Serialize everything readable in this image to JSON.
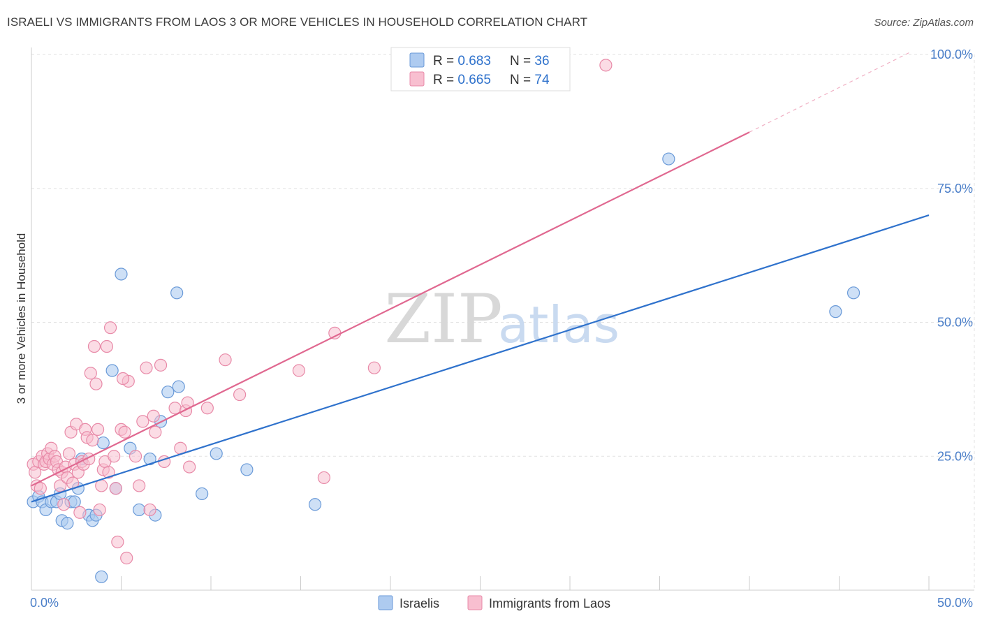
{
  "header": {
    "title": "ISRAELI VS IMMIGRANTS FROM LAOS 3 OR MORE VEHICLES IN HOUSEHOLD CORRELATION CHART",
    "source": "Source: ZipAtlas.com"
  },
  "watermark": {
    "zip": "ZIP",
    "atlas": "atlas"
  },
  "legend_top": {
    "rows": [
      {
        "r_label": "R = ",
        "r_value": "0.683",
        "n_label": "N = ",
        "n_value": "36"
      },
      {
        "r_label": "R = ",
        "r_value": "0.665",
        "n_label": "N = ",
        "n_value": "74"
      }
    ]
  },
  "legend_bottom": {
    "series": [
      "Israelis",
      "Immigrants from Laos"
    ]
  },
  "colors": {
    "israelis_fill": "#aecbf0",
    "israelis_stroke": "#6a9ad8",
    "israelis_line": "#2f72cc",
    "laos_fill": "#f8bfd0",
    "laos_stroke": "#e88aa8",
    "laos_line": "#e06890",
    "tick_text": "#4a7ec8",
    "value_text": "#2f72cc"
  },
  "chart_data": {
    "type": "scatter",
    "title": "ISRAELI VS IMMIGRANTS FROM LAOS 3 OR MORE VEHICLES IN HOUSEHOLD CORRELATION CHART",
    "xlabel": "",
    "ylabel": "3 or more Vehicles in Household",
    "xlim": [
      0,
      50
    ],
    "ylim": [
      0,
      100
    ],
    "x_tick_labels": [
      "0.0%",
      "50.0%"
    ],
    "y_ticks": [
      25,
      50,
      75,
      100
    ],
    "y_tick_labels": [
      "25.0%",
      "50.0%",
      "75.0%",
      "100.0%"
    ],
    "grid": true,
    "legend_placement": "top-center",
    "series": [
      {
        "name": "Israelis",
        "r": 0.683,
        "n": 36,
        "trend": {
          "x": [
            0,
            50
          ],
          "y": [
            16.5,
            70.0
          ]
        },
        "points": [
          [
            0.1,
            16.5
          ],
          [
            0.4,
            17.5
          ],
          [
            0.6,
            16.5
          ],
          [
            0.8,
            15.0
          ],
          [
            1.1,
            16.5
          ],
          [
            1.4,
            16.5
          ],
          [
            1.6,
            18.0
          ],
          [
            1.7,
            13.0
          ],
          [
            2.0,
            12.5
          ],
          [
            2.2,
            16.5
          ],
          [
            2.4,
            16.5
          ],
          [
            2.6,
            19.0
          ],
          [
            2.8,
            24.5
          ],
          [
            3.2,
            14.0
          ],
          [
            3.4,
            13.0
          ],
          [
            3.6,
            14.0
          ],
          [
            3.9,
            2.5
          ],
          [
            4.0,
            27.5
          ],
          [
            4.5,
            41.0
          ],
          [
            4.7,
            19.0
          ],
          [
            5.0,
            59.0
          ],
          [
            5.5,
            26.5
          ],
          [
            6.0,
            15.0
          ],
          [
            6.6,
            24.5
          ],
          [
            6.9,
            14.0
          ],
          [
            7.2,
            31.5
          ],
          [
            7.6,
            37.0
          ],
          [
            8.2,
            38.0
          ],
          [
            8.1,
            55.5
          ],
          [
            9.5,
            18.0
          ],
          [
            10.3,
            25.5
          ],
          [
            12.0,
            22.5
          ],
          [
            15.8,
            16.0
          ],
          [
            35.5,
            80.5
          ],
          [
            44.8,
            52.0
          ],
          [
            45.8,
            55.5
          ]
        ]
      },
      {
        "name": "Immigrants from Laos",
        "r": 0.665,
        "n": 74,
        "trend": {
          "x": [
            0,
            40
          ],
          "y": [
            19.5,
            85.5
          ]
        },
        "trend_extension": {
          "x": [
            40,
            49
          ],
          "y": [
            85.5,
            100.5
          ]
        },
        "points": [
          [
            0.1,
            23.5
          ],
          [
            0.2,
            22.0
          ],
          [
            0.3,
            19.5
          ],
          [
            0.4,
            24.0
          ],
          [
            0.5,
            19.0
          ],
          [
            0.6,
            25.0
          ],
          [
            0.7,
            23.5
          ],
          [
            0.8,
            24.0
          ],
          [
            0.9,
            25.5
          ],
          [
            1.0,
            24.5
          ],
          [
            1.1,
            26.5
          ],
          [
            1.2,
            23.5
          ],
          [
            1.3,
            25.0
          ],
          [
            1.4,
            24.0
          ],
          [
            1.5,
            22.5
          ],
          [
            1.6,
            19.5
          ],
          [
            1.7,
            22.0
          ],
          [
            1.8,
            16.0
          ],
          [
            1.9,
            23.0
          ],
          [
            2.0,
            21.0
          ],
          [
            2.1,
            25.5
          ],
          [
            2.2,
            29.5
          ],
          [
            2.3,
            20.0
          ],
          [
            2.4,
            23.5
          ],
          [
            2.5,
            31.0
          ],
          [
            2.6,
            22.0
          ],
          [
            2.7,
            14.5
          ],
          [
            2.8,
            24.0
          ],
          [
            2.9,
            23.5
          ],
          [
            3.0,
            30.0
          ],
          [
            3.1,
            28.5
          ],
          [
            3.2,
            24.5
          ],
          [
            3.3,
            40.5
          ],
          [
            3.4,
            28.0
          ],
          [
            3.5,
            45.5
          ],
          [
            3.6,
            38.5
          ],
          [
            3.7,
            30.0
          ],
          [
            3.8,
            15.0
          ],
          [
            3.9,
            19.5
          ],
          [
            4.0,
            22.5
          ],
          [
            4.1,
            24.0
          ],
          [
            4.2,
            45.5
          ],
          [
            4.3,
            22.0
          ],
          [
            4.4,
            49.0
          ],
          [
            4.6,
            25.0
          ],
          [
            4.7,
            19.0
          ],
          [
            4.8,
            9.0
          ],
          [
            5.0,
            30.0
          ],
          [
            5.2,
            29.5
          ],
          [
            5.3,
            6.0
          ],
          [
            5.4,
            39.0
          ],
          [
            5.1,
            39.5
          ],
          [
            5.8,
            25.0
          ],
          [
            6.0,
            19.5
          ],
          [
            6.2,
            31.5
          ],
          [
            6.4,
            41.5
          ],
          [
            6.6,
            15.0
          ],
          [
            6.8,
            32.5
          ],
          [
            6.9,
            29.5
          ],
          [
            7.2,
            42.0
          ],
          [
            7.4,
            24.0
          ],
          [
            8.0,
            34.0
          ],
          [
            8.3,
            26.5
          ],
          [
            8.6,
            33.5
          ],
          [
            8.7,
            35.0
          ],
          [
            8.8,
            23.0
          ],
          [
            9.8,
            34.0
          ],
          [
            10.8,
            43.0
          ],
          [
            11.6,
            36.5
          ],
          [
            14.9,
            41.0
          ],
          [
            16.3,
            21.0
          ],
          [
            16.9,
            48.0
          ],
          [
            19.1,
            41.5
          ],
          [
            32.0,
            98.0
          ]
        ]
      }
    ]
  }
}
